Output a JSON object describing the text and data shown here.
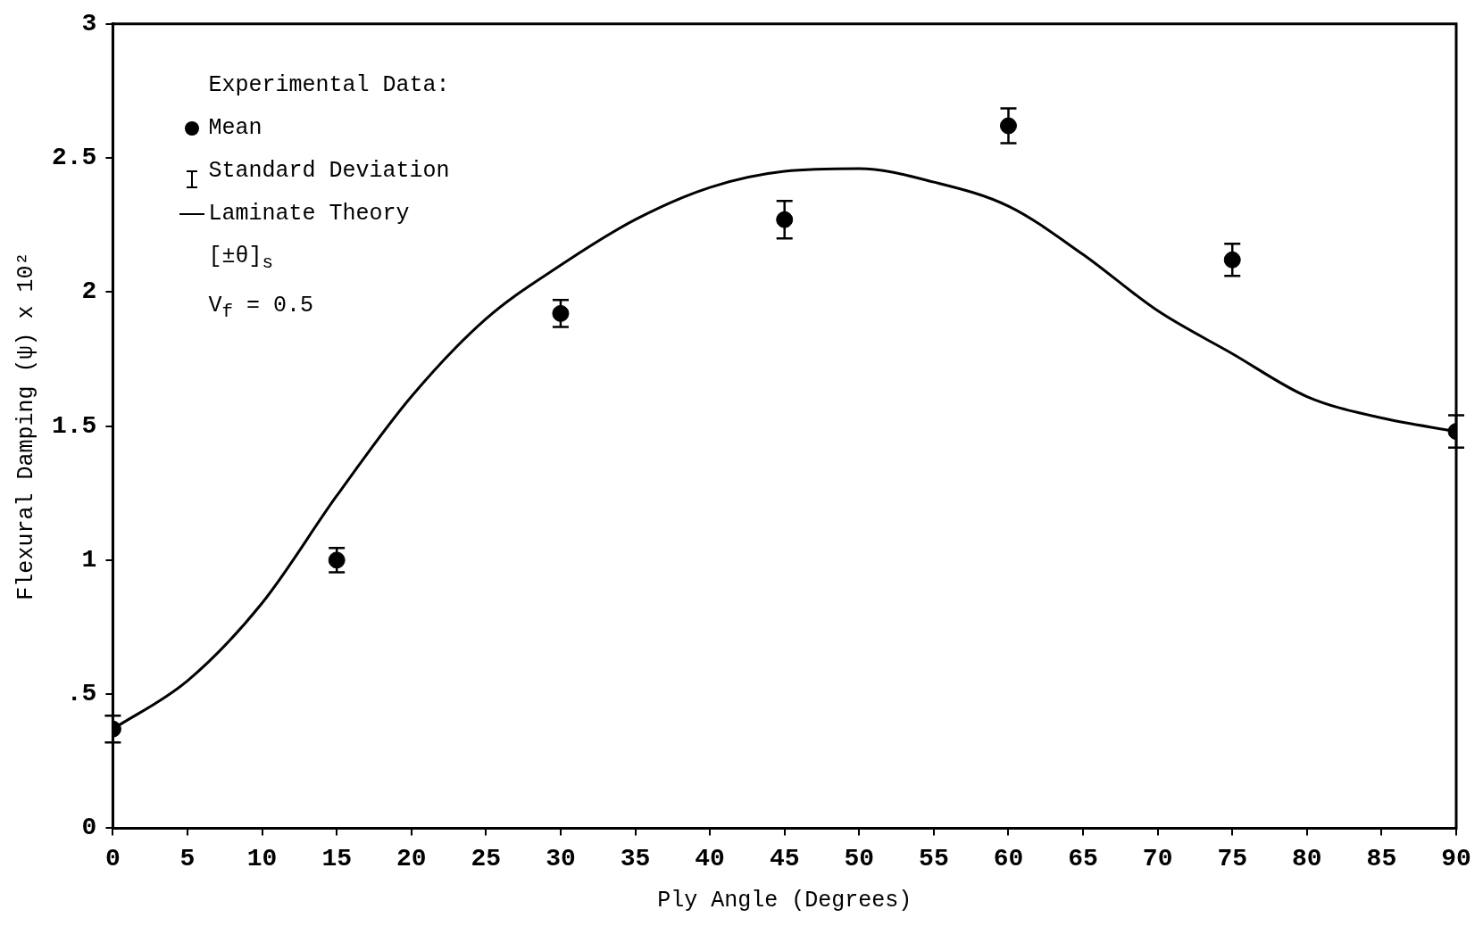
{
  "chart_data": {
    "type": "scatter",
    "xlabel": "Ply Angle (Degrees)",
    "ylabel": "Flexural Damping (ψ) x 10²",
    "legend_title": "Experimental Data:",
    "legend": "top left",
    "grid": false,
    "xlim": [
      0,
      90
    ],
    "xticks": [
      0,
      5,
      10,
      15,
      20,
      25,
      30,
      35,
      40,
      45,
      50,
      55,
      60,
      65,
      70,
      75,
      80,
      85,
      90
    ],
    "ylim": [
      0,
      3
    ],
    "yticks": [
      0,
      {
        "value": 0.5,
        "label": ".5"
      },
      1,
      1.5,
      2,
      2.5,
      3
    ],
    "annotations": [
      "Standard Deviation",
      "[±θ]$_{s}$",
      "V$_{f}$ = 0.5"
    ],
    "series": [
      {
        "name": "Mean",
        "type": "scatter",
        "marker": "circle",
        "color": "#000000",
        "x": [
          0,
          15,
          30,
          45,
          60,
          75,
          90
        ],
        "values": [
          0.37,
          1.0,
          1.92,
          2.27,
          2.62,
          2.12,
          1.48
        ],
        "errors": [
          0.05,
          0.045,
          0.05,
          0.07,
          0.065,
          0.06,
          0.06
        ]
      },
      {
        "name": "Laminate Theory",
        "type": "line",
        "marker": "none",
        "line_style": "solid",
        "color": "#000000",
        "x": [
          0,
          5,
          10,
          15,
          20,
          25,
          30,
          35,
          40,
          45,
          50,
          55,
          60,
          65,
          70,
          75,
          80,
          85,
          90
        ],
        "values": [
          0.37,
          0.55,
          0.84,
          1.24,
          1.61,
          1.9,
          2.1,
          2.27,
          2.39,
          2.45,
          2.46,
          2.41,
          2.32,
          2.14,
          1.93,
          1.77,
          1.61,
          1.53,
          1.48
        ]
      }
    ]
  }
}
